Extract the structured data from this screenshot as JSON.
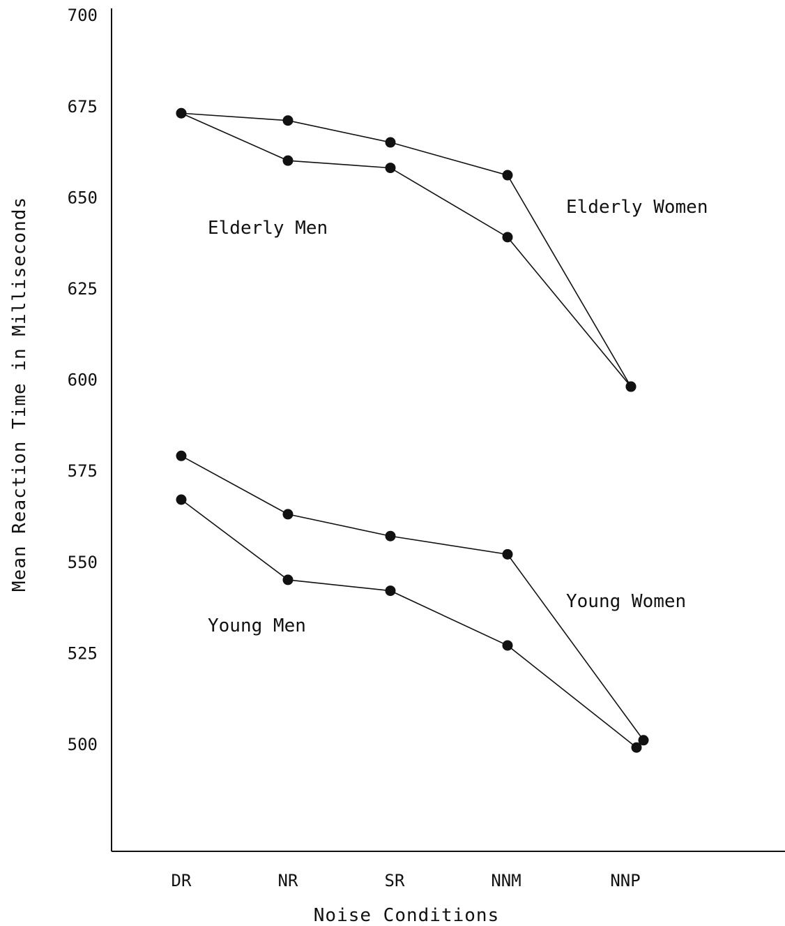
{
  "chart_data": {
    "type": "line",
    "title": "",
    "xlabel": "Noise Conditions",
    "ylabel": "Mean Reaction Time in Milliseconds",
    "categories": [
      "DR",
      "NR",
      "SR",
      "NNM",
      "NNP"
    ],
    "ylim": [
      478,
      700
    ],
    "yticks": [
      500,
      525,
      550,
      575,
      600,
      625,
      650,
      675,
      700
    ],
    "grid": false,
    "legend": "inline labels",
    "series": [
      {
        "name": "Elderly Women",
        "values": [
          673,
          671,
          665,
          656,
          598
        ]
      },
      {
        "name": "Elderly Men",
        "values": [
          673,
          660,
          658,
          639,
          598
        ]
      },
      {
        "name": "Young Women",
        "values": [
          579,
          563,
          557,
          552,
          501
        ]
      },
      {
        "name": "Young Men",
        "values": [
          567,
          545,
          542,
          527,
          499
        ]
      }
    ]
  }
}
